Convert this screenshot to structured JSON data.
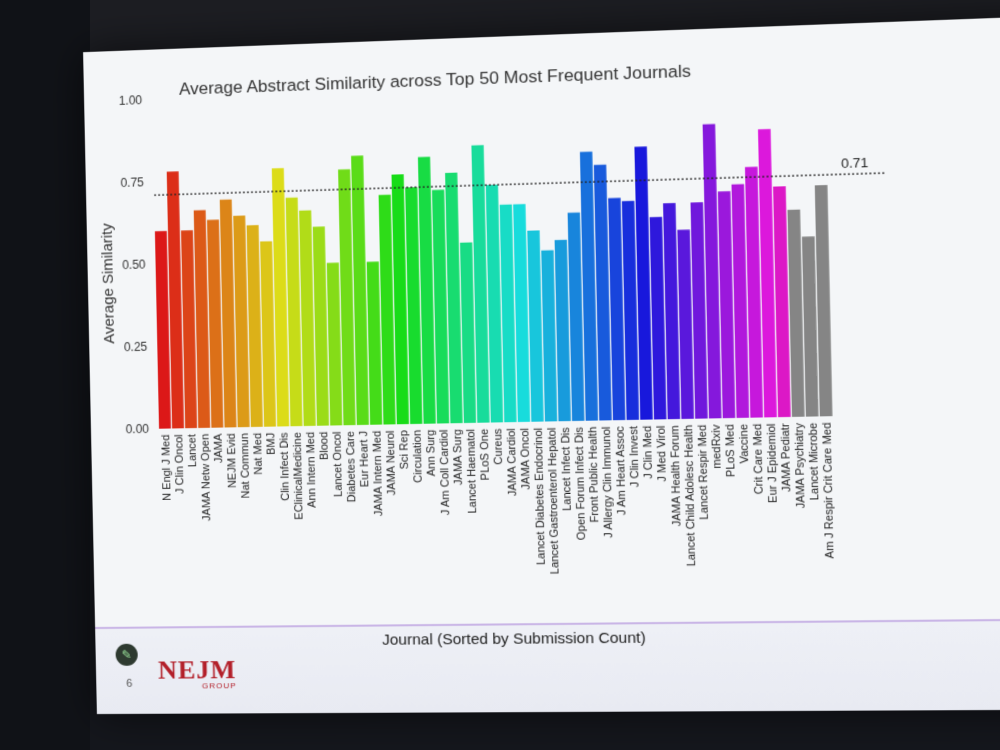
{
  "slide": {
    "page_number": "6",
    "logo_main": "NEJM",
    "logo_sub": "GROUP"
  },
  "chart_data": {
    "type": "bar",
    "title": "Average Abstract Similarity across Top 50 Most Frequent Journals",
    "xlabel": "Journal (Sorted by Submission Count)",
    "ylabel": "Average Similarity",
    "ylim": [
      0,
      1
    ],
    "yticks": [
      "0.00",
      "0.25",
      "0.50",
      "0.75",
      "1.00"
    ],
    "reference_line": {
      "value": 0.71,
      "label": "0.71",
      "style": "dotted"
    },
    "categories": [
      "N Engl J Med",
      "J Clin Oncol",
      "Lancet",
      "JAMA Netw Open",
      "JAMA",
      "NEJM Evid",
      "Nat Commun",
      "Nat Med",
      "BMJ",
      "Clin Infect Dis",
      "EClinicalMedicine",
      "Ann Intern Med",
      "Blood",
      "Lancet Oncol",
      "Diabetes Care",
      "Eur Heart J",
      "JAMA Intern Med",
      "JAMA Neurol",
      "Sci Rep",
      "Circulation",
      "Ann Surg",
      "J Am Coll Cardiol",
      "JAMA Surg",
      "Lancet Haematol",
      "PLoS One",
      "Cureus",
      "JAMA Cardiol",
      "JAMA Oncol",
      "Lancet Diabetes Endocrinol",
      "Lancet Gastroenterol Hepatol",
      "Lancet Infect Dis",
      "Open Forum Infect Dis",
      "Front Public Health",
      "J Allergy Clin Immunol",
      "J Am Heart Assoc",
      "J Clin Invest",
      "J Clin Med",
      "J Med Virol",
      "JAMA Health Forum",
      "Lancet Child Adolesc Health",
      "Lancet Respir Med",
      "medRxiv",
      "PLoS Med",
      "Vaccine",
      "Crit Care Med",
      "Eur J Epidemiol",
      "JAMA Pediatr",
      "JAMA Psychiatry",
      "Lancet Microbe",
      "Am J Respir Crit Care Med"
    ],
    "values": [
      0.6,
      0.78,
      0.6,
      0.66,
      0.63,
      0.69,
      0.64,
      0.61,
      0.56,
      0.78,
      0.69,
      0.65,
      0.6,
      0.49,
      0.77,
      0.81,
      0.49,
      0.69,
      0.75,
      0.71,
      0.8,
      0.7,
      0.75,
      0.54,
      0.83,
      0.71,
      0.65,
      0.65,
      0.57,
      0.51,
      0.54,
      0.62,
      0.8,
      0.76,
      0.66,
      0.65,
      0.81,
      0.6,
      0.64,
      0.56,
      0.64,
      0.87,
      0.67,
      0.69,
      0.74,
      0.85,
      0.68,
      0.61,
      0.53,
      0.68
    ]
  }
}
